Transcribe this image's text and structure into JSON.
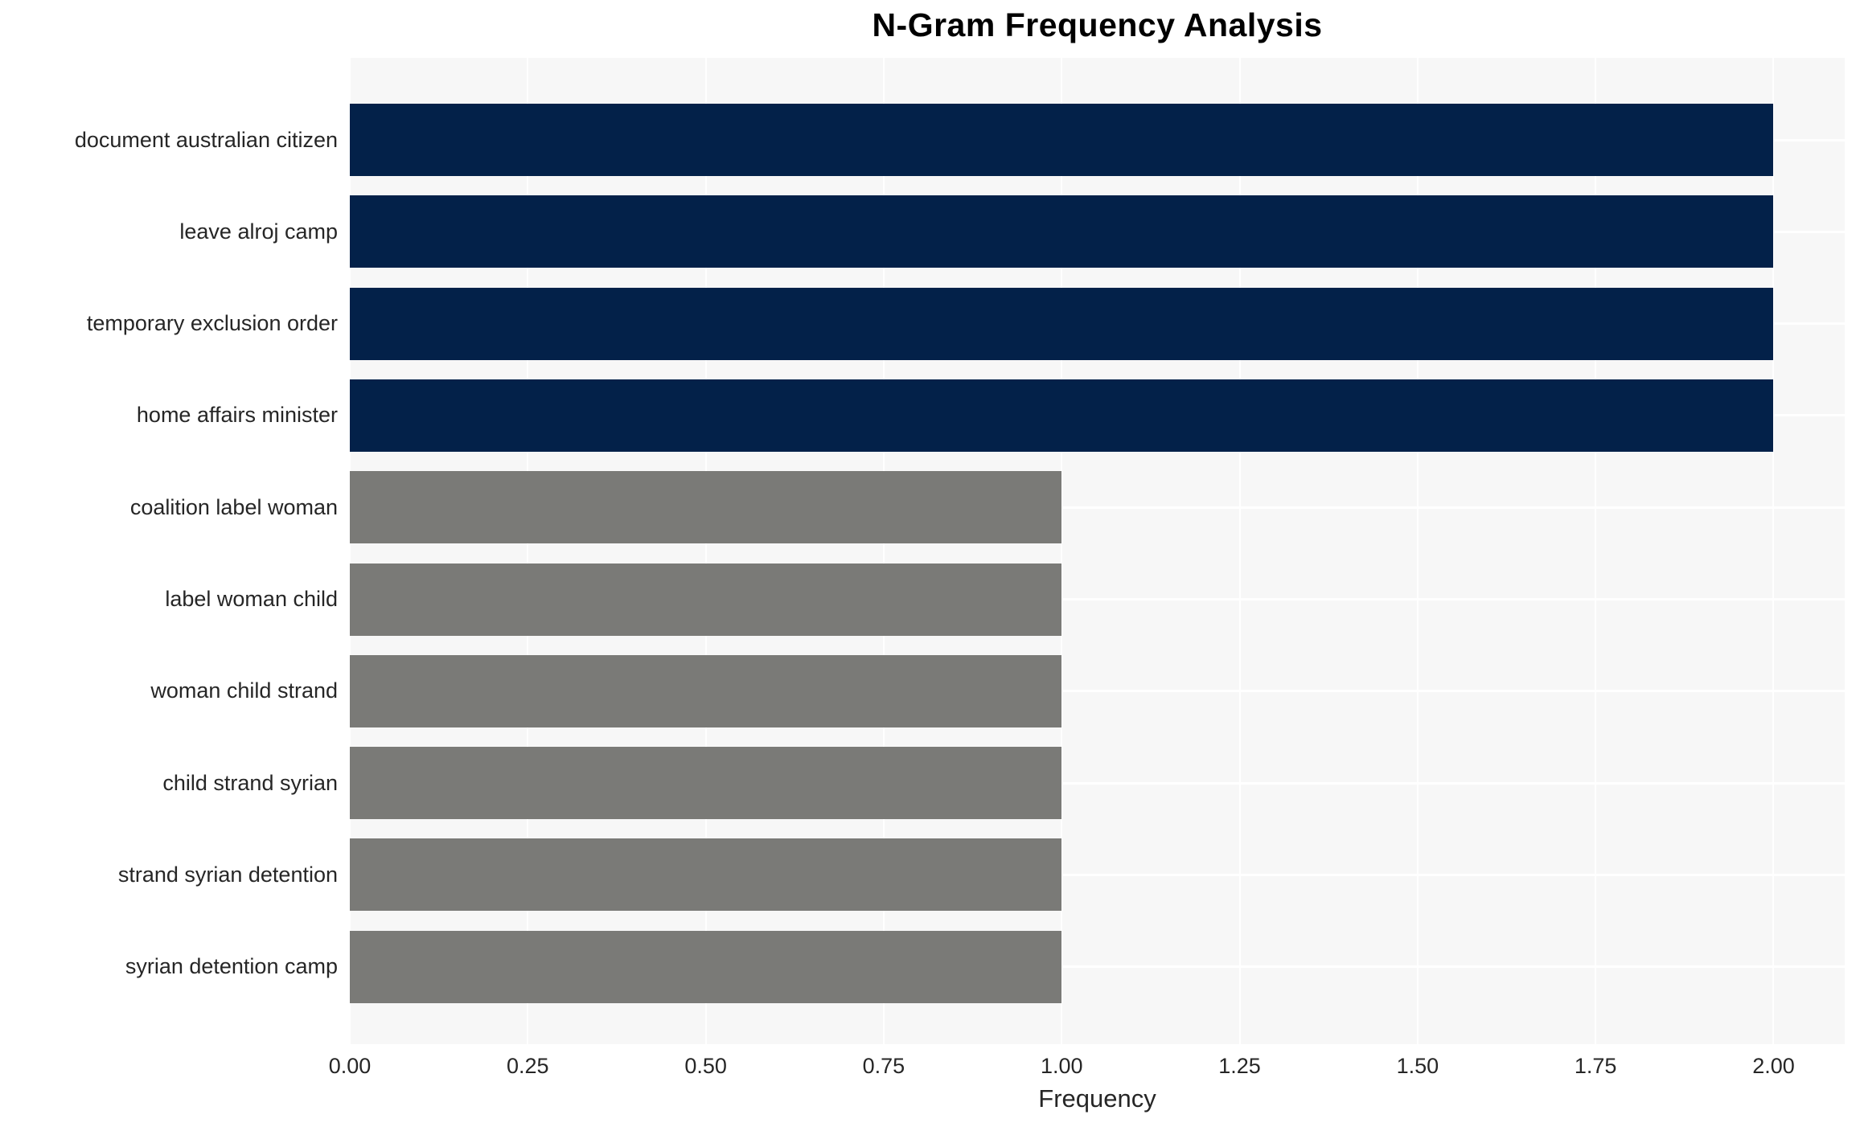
{
  "chart_data": {
    "type": "bar",
    "orientation": "horizontal",
    "title": "N-Gram Frequency Analysis",
    "xlabel": "Frequency",
    "ylabel": "",
    "categories": [
      "document australian citizen",
      "leave alroj camp",
      "temporary exclusion order",
      "home affairs minister",
      "coalition label woman",
      "label woman child",
      "woman child strand",
      "child strand syrian",
      "strand syrian detention",
      "syrian detention camp"
    ],
    "values": [
      2.0,
      2.0,
      2.0,
      2.0,
      1.0,
      1.0,
      1.0,
      1.0,
      1.0,
      1.0
    ],
    "bar_colors": [
      "#032149",
      "#032149",
      "#032149",
      "#032149",
      "#7a7a77",
      "#7a7a77",
      "#7a7a77",
      "#7a7a77",
      "#7a7a77",
      "#7a7a77"
    ],
    "xlim": [
      0,
      2.1
    ],
    "xticks": [
      0,
      0.25,
      0.5,
      0.75,
      1.0,
      1.25,
      1.5,
      1.75,
      2.0
    ],
    "xtick_labels": [
      "0.00",
      "0.25",
      "0.50",
      "0.75",
      "1.00",
      "1.25",
      "1.50",
      "1.75",
      "2.00"
    ],
    "grid": true,
    "legend": false,
    "plot_background": "#f7f7f7",
    "gridline_color": "#ffffff",
    "text_color": "#262626",
    "title_color": "#000000"
  }
}
